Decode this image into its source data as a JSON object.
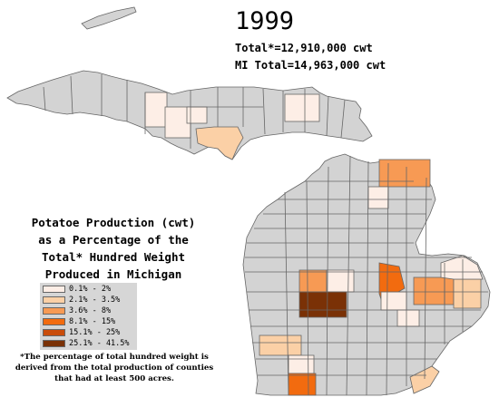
{
  "title": {
    "year": "1999",
    "total": "Total*=12,910,000 cwt",
    "mi_total": "MI Total=14,963,000 cwt"
  },
  "legend": {
    "title_lines": [
      "Potatoe Production (cwt)",
      "as a Percentage of the",
      "Total* Hundred Weight",
      "Produced in Michigan"
    ],
    "classes": [
      {
        "label": "0.1% - 2%",
        "color": "#fdeee6"
      },
      {
        "label": "2.1% - 3.5%",
        "color": "#fbd0a6"
      },
      {
        "label": "3.6% - 8%",
        "color": "#f79a54"
      },
      {
        "label": "8.1% - 15%",
        "color": "#f26b0f"
      },
      {
        "label": "15.1% - 25%",
        "color": "#c94c0a"
      },
      {
        "label": "25.1% - 41.5%",
        "color": "#7a3106"
      }
    ],
    "no_data_color": "#d3d3d3"
  },
  "footnote": "*The percentage of total hundred weight is derived from the total production of counties that had at least 500 acres.",
  "map_data": {
    "region": "Michigan counties",
    "shaded_counties": [
      {
        "area": "Upper Peninsula central",
        "class_index": 0
      },
      {
        "area": "Upper Peninsula east-central",
        "class_index": 0
      },
      {
        "area": "Upper Peninsula south-central",
        "class_index": 1
      },
      {
        "area": "Northern Lower Peninsula (north-east)",
        "class_index": 2
      },
      {
        "area": "Northern Lower Peninsula (north-central)",
        "class_index": 0
      },
      {
        "area": "Central Lower Peninsula (west)",
        "class_index": 2
      },
      {
        "area": "Central Lower Peninsula (center)",
        "class_index": 0
      },
      {
        "area": "Central Lower Peninsula (east)",
        "class_index": 3
      },
      {
        "area": "Central Lower Peninsula (large)",
        "class_index": 5
      },
      {
        "area": "Thumb area",
        "class_index": 2
      },
      {
        "area": "Thumb area (east)",
        "class_index": 1
      },
      {
        "area": "Thumb tip",
        "class_index": 0
      },
      {
        "area": "South-central Lower Peninsula",
        "class_index": 0
      },
      {
        "area": "South-west Lower Peninsula",
        "class_index": 1
      },
      {
        "area": "South-central border",
        "class_index": 0
      },
      {
        "area": "South border",
        "class_index": 3
      },
      {
        "area": "South-east border",
        "class_index": 1
      }
    ]
  }
}
